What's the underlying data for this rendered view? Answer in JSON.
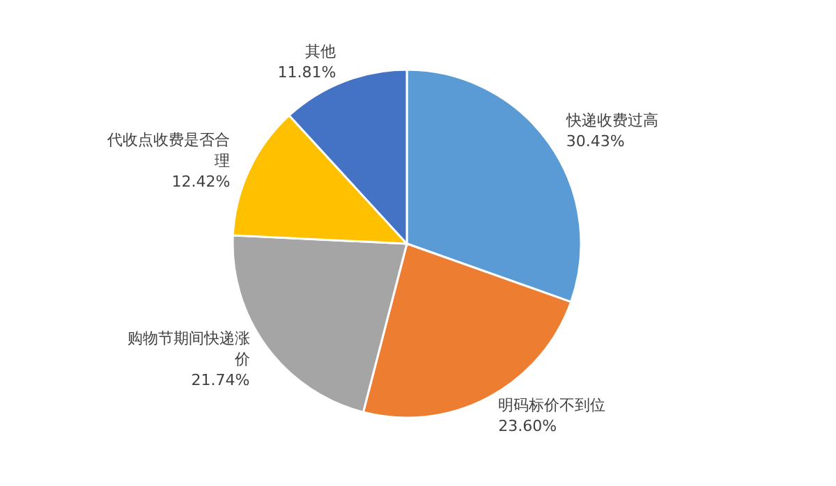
{
  "chart_data": {
    "type": "pie",
    "categories": [
      "快递收费过高",
      "明码标价不到位",
      "购物节期间快递涨价",
      "代收点收费是否合理",
      "其他"
    ],
    "values": [
      30.43,
      23.6,
      21.74,
      12.42,
      11.81
    ],
    "colors": [
      "#5b9bd5",
      "#ed7d31",
      "#a5a5a5",
      "#ffc000",
      "#4472c4"
    ],
    "value_labels": [
      "30.43%",
      "23.60%",
      "21.74%",
      "12.42%",
      "11.81%"
    ]
  }
}
